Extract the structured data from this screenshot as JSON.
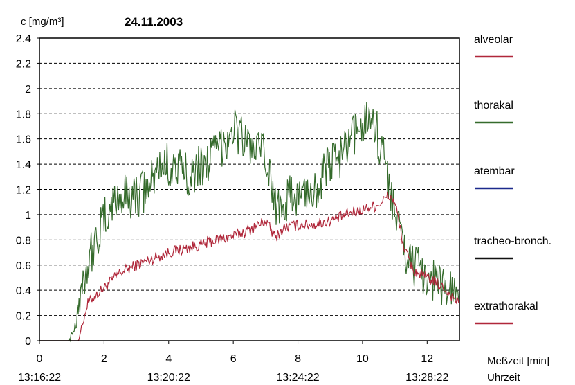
{
  "chart_data": {
    "type": "line",
    "title": "24.11.2003",
    "ylabel": "c [mg/m³]",
    "xlabel": "Meßzeit [min]",
    "x2label": "Uhrzeit",
    "xlim": [
      0,
      13
    ],
    "ylim": [
      0,
      2.4
    ],
    "x_ticks": [
      0,
      2,
      4,
      6,
      8,
      10,
      12
    ],
    "x_tick_labels": [
      "0",
      "2",
      "4",
      "6",
      "8",
      "10",
      "12"
    ],
    "x_time_ticks": [
      0,
      4,
      8,
      12
    ],
    "x_time_labels": [
      "13:16:22",
      "13:20:22",
      "13:24:22",
      "13:28:22"
    ],
    "y_ticks": [
      0,
      0.2,
      0.4,
      0.6,
      0.8,
      1,
      1.2,
      1.4,
      1.6,
      1.8,
      2,
      2.2,
      2.4
    ],
    "y_tick_labels": [
      "0",
      "0.2",
      "0.4",
      "0.6",
      "0.8",
      "1",
      "1.2",
      "1.4",
      "1.6",
      "1.8",
      "2",
      "2.2",
      "2.4"
    ],
    "grid": "horizontal dashed",
    "legend_position": "right",
    "series": [
      {
        "name": "alveolar",
        "color": "#b0273a",
        "x": [
          0,
          1.2,
          1.3,
          1.5,
          2,
          2.5,
          3,
          3.5,
          4,
          4.5,
          5,
          5.5,
          6,
          6.5,
          7,
          7.3,
          7.6,
          8,
          8.5,
          9,
          9.5,
          10,
          10.5,
          10.8,
          11,
          11.3,
          11.6,
          12,
          12.5,
          12.9
        ],
        "y": [
          0,
          0,
          0.1,
          0.3,
          0.42,
          0.54,
          0.6,
          0.65,
          0.7,
          0.73,
          0.76,
          0.8,
          0.83,
          0.88,
          0.95,
          0.82,
          0.9,
          0.92,
          0.92,
          0.95,
          1.0,
          1.04,
          1.08,
          1.15,
          1.1,
          0.72,
          0.55,
          0.5,
          0.42,
          0.32
        ],
        "noise": 0.045
      },
      {
        "name": "thorakal",
        "color": "#356b2c",
        "x": [
          0,
          0.9,
          1.1,
          1.3,
          1.6,
          2,
          2.3,
          2.6,
          3,
          3.4,
          3.7,
          4,
          4.3,
          4.6,
          5,
          5.5,
          6,
          6.5,
          7,
          7.3,
          7.6,
          8,
          8.5,
          9,
          9.5,
          10,
          10.3,
          10.6,
          10.8,
          11.1,
          11.4,
          11.8,
          12.3,
          12.9
        ],
        "y": [
          0,
          0,
          0.12,
          0.45,
          0.7,
          0.95,
          1.1,
          1.15,
          1.15,
          1.22,
          1.38,
          1.4,
          1.35,
          1.33,
          1.38,
          1.5,
          1.7,
          1.55,
          1.45,
          1.08,
          1.12,
          1.15,
          1.2,
          1.4,
          1.5,
          1.75,
          1.8,
          1.5,
          1.3,
          0.9,
          0.65,
          0.55,
          0.48,
          0.35
        ],
        "noise": 0.18
      },
      {
        "name": "atembar",
        "color": "#1c2a8c"
      },
      {
        "name": "tracheo-bronch.",
        "color": "#111111"
      },
      {
        "name": "extrathorakal",
        "color": "#b0273a"
      }
    ]
  }
}
